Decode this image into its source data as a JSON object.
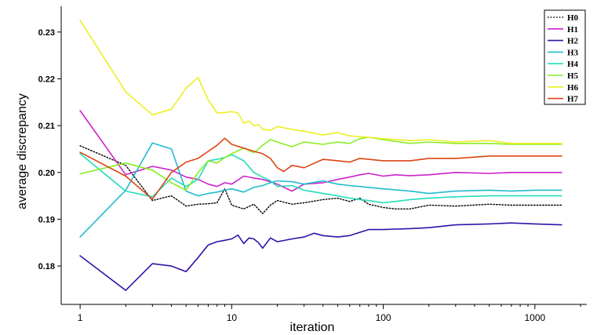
{
  "chart_data": {
    "type": "line",
    "xlabel": "iteration",
    "ylabel": "average discrepancy",
    "xscale": "log",
    "xlim": [
      0.75,
      2200
    ],
    "ylim": [
      0.1718,
      0.2355
    ],
    "xticks": [
      {
        "value": 1,
        "label": "1"
      },
      {
        "value": 10,
        "label": "10"
      },
      {
        "value": 100,
        "label": "100"
      },
      {
        "value": 1000,
        "label": "1000"
      }
    ],
    "yticks": [
      {
        "value": 0.18,
        "label": "0.18"
      },
      {
        "value": 0.19,
        "label": "0.19"
      },
      {
        "value": 0.2,
        "label": "0.20"
      },
      {
        "value": 0.21,
        "label": "0.21"
      },
      {
        "value": 0.22,
        "label": "0.22"
      },
      {
        "value": 0.23,
        "label": "0.23"
      }
    ],
    "legend_position": "top-right",
    "grid": false,
    "series": [
      {
        "name": "H0",
        "color": "#000000",
        "dash": "dotted",
        "x": [
          1,
          2,
          3,
          4,
          5,
          6,
          7,
          8,
          9,
          10,
          12,
          14,
          16,
          18,
          20,
          25,
          30,
          40,
          50,
          60,
          70,
          80,
          100,
          120,
          150,
          200,
          300,
          500,
          700,
          1000,
          1500
        ],
        "y": [
          0.2057,
          0.2015,
          0.194,
          0.195,
          0.1928,
          0.1932,
          0.1933,
          0.1935,
          0.1965,
          0.193,
          0.1922,
          0.1932,
          0.1912,
          0.193,
          0.194,
          0.1932,
          0.1935,
          0.1942,
          0.1945,
          0.1938,
          0.1945,
          0.1932,
          0.1925,
          0.1922,
          0.1922,
          0.193,
          0.1928,
          0.1932,
          0.193,
          0.193,
          0.193
        ]
      },
      {
        "name": "H1",
        "color": "#cc22cc",
        "dash": "solid",
        "x": [
          1,
          2,
          3,
          4,
          5,
          6,
          7,
          8,
          9,
          10,
          12,
          14,
          16,
          18,
          20,
          25,
          30,
          40,
          50,
          60,
          70,
          80,
          100,
          120,
          150,
          200,
          300,
          500,
          700,
          1000,
          1500
        ],
        "y": [
          0.2132,
          0.1995,
          0.2013,
          0.2005,
          0.199,
          0.1985,
          0.1975,
          0.197,
          0.1978,
          0.1975,
          0.1992,
          0.1988,
          0.1985,
          0.198,
          0.1975,
          0.196,
          0.1975,
          0.1978,
          0.1985,
          0.199,
          0.1995,
          0.1998,
          0.1992,
          0.1995,
          0.1993,
          0.1995,
          0.2,
          0.1998,
          0.2,
          0.2,
          0.2
        ]
      },
      {
        "name": "H2",
        "color": "#3311aa",
        "dash": "solid",
        "x": [
          1,
          2,
          3,
          4,
          5,
          6,
          7,
          8,
          9,
          10,
          11,
          12,
          13,
          14,
          15,
          16,
          18,
          20,
          25,
          30,
          35,
          40,
          50,
          60,
          70,
          80,
          100,
          150,
          200,
          300,
          500,
          700,
          1000,
          1500
        ],
        "y": [
          0.1822,
          0.1748,
          0.1805,
          0.18,
          0.1788,
          0.1818,
          0.1845,
          0.1852,
          0.1855,
          0.1858,
          0.1866,
          0.1848,
          0.186,
          0.1858,
          0.185,
          0.1838,
          0.186,
          0.1852,
          0.1858,
          0.1862,
          0.187,
          0.1865,
          0.1862,
          0.1865,
          0.1872,
          0.1878,
          0.1878,
          0.188,
          0.1882,
          0.1888,
          0.189,
          0.1892,
          0.189,
          0.1888
        ]
      },
      {
        "name": "H3",
        "color": "#22bbcc",
        "dash": "solid",
        "x": [
          1,
          2,
          3,
          4,
          5,
          6,
          7,
          8,
          9,
          10,
          12,
          14,
          16,
          18,
          20,
          25,
          30,
          40,
          50,
          60,
          70,
          80,
          100,
          150,
          200,
          300,
          500,
          700,
          1000,
          1500
        ],
        "y": [
          0.1862,
          0.1962,
          0.2063,
          0.205,
          0.196,
          0.195,
          0.1955,
          0.1958,
          0.1962,
          0.1965,
          0.1958,
          0.1968,
          0.1972,
          0.1978,
          0.1982,
          0.198,
          0.1975,
          0.1982,
          0.1975,
          0.1972,
          0.197,
          0.1968,
          0.1965,
          0.196,
          0.1955,
          0.196,
          0.1962,
          0.196,
          0.1962,
          0.1962
        ]
      },
      {
        "name": "H4",
        "color": "#22ddbb",
        "dash": "solid",
        "x": [
          1,
          2,
          3,
          4,
          5,
          6,
          7,
          8,
          9,
          10,
          12,
          14,
          16,
          18,
          20,
          25,
          30,
          40,
          50,
          60,
          70,
          80,
          100,
          120,
          150,
          200,
          300,
          500,
          700,
          1000,
          1500
        ],
        "y": [
          0.204,
          0.196,
          0.1948,
          0.1988,
          0.197,
          0.1985,
          0.2025,
          0.2028,
          0.2032,
          0.2038,
          0.2025,
          0.2,
          0.199,
          0.1982,
          0.197,
          0.1972,
          0.1962,
          0.1955,
          0.195,
          0.1945,
          0.1942,
          0.194,
          0.1935,
          0.1938,
          0.1942,
          0.1945,
          0.1948,
          0.195,
          0.195,
          0.195,
          0.195
        ]
      },
      {
        "name": "H5",
        "color": "#88ee22",
        "dash": "solid",
        "x": [
          1,
          2,
          3,
          4,
          5,
          6,
          7,
          8,
          9,
          10,
          12,
          14,
          16,
          18,
          20,
          25,
          30,
          40,
          50,
          60,
          70,
          80,
          100,
          150,
          200,
          300,
          500,
          700,
          1000,
          1500
        ],
        "y": [
          0.1997,
          0.202,
          0.2005,
          0.1978,
          0.1962,
          0.2,
          0.2025,
          0.202,
          0.2032,
          0.204,
          0.2052,
          0.2042,
          0.2058,
          0.207,
          0.2065,
          0.2055,
          0.2065,
          0.206,
          0.2065,
          0.2062,
          0.2072,
          0.2075,
          0.207,
          0.2062,
          0.2065,
          0.2062,
          0.2062,
          0.206,
          0.206,
          0.206
        ]
      },
      {
        "name": "H6",
        "color": "#eeee22",
        "dash": "solid",
        "x": [
          1,
          2,
          3,
          4,
          5,
          6,
          7,
          8,
          9,
          10,
          11,
          12,
          13,
          14,
          15,
          16,
          18,
          20,
          25,
          30,
          40,
          50,
          60,
          80,
          100,
          150,
          200,
          300,
          500,
          700,
          1000,
          1500
        ],
        "y": [
          0.2325,
          0.2172,
          0.2123,
          0.2135,
          0.218,
          0.2203,
          0.2155,
          0.2127,
          0.2128,
          0.213,
          0.2127,
          0.2105,
          0.211,
          0.21,
          0.2102,
          0.2092,
          0.209,
          0.2098,
          0.2092,
          0.2088,
          0.208,
          0.2085,
          0.2078,
          0.2075,
          0.2072,
          0.2068,
          0.207,
          0.2065,
          0.2068,
          0.2062,
          0.2062,
          0.2062
        ]
      },
      {
        "name": "H7",
        "color": "#dd4411",
        "dash": "solid",
        "x": [
          1,
          2,
          3,
          4,
          5,
          6,
          7,
          8,
          9,
          10,
          12,
          14,
          16,
          18,
          20,
          22,
          25,
          30,
          40,
          50,
          60,
          70,
          80,
          100,
          150,
          200,
          300,
          500,
          700,
          1000,
          1500
        ],
        "y": [
          0.2043,
          0.1992,
          0.1943,
          0.2,
          0.2022,
          0.203,
          0.2045,
          0.2058,
          0.2073,
          0.206,
          0.2052,
          0.2045,
          0.204,
          0.203,
          0.201,
          0.2002,
          0.2015,
          0.201,
          0.2028,
          0.2025,
          0.2022,
          0.203,
          0.2028,
          0.2025,
          0.2025,
          0.203,
          0.203,
          0.2035,
          0.2035,
          0.2035,
          0.2035
        ]
      }
    ]
  }
}
